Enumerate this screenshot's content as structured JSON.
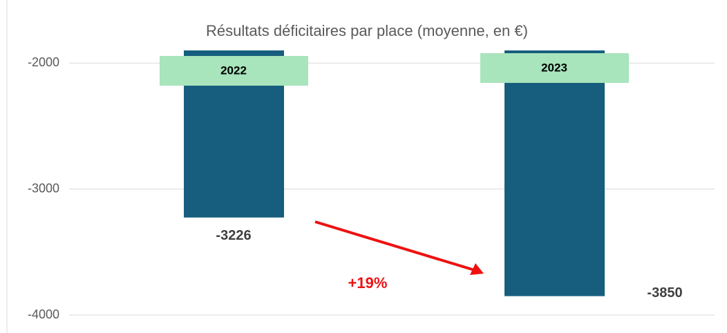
{
  "chart_data": {
    "type": "bar",
    "title": "Résultats déficitaires par place (moyenne, en €)",
    "categories": [
      "2022",
      "2023"
    ],
    "values": [
      -3226,
      -3850
    ],
    "color": "#175e7e",
    "label_color": "#a8e4bc",
    "ylim": [
      -4000,
      -1900
    ],
    "yticks": [
      -4000,
      -3000,
      -2000
    ],
    "grid": true,
    "annotation": "+19%"
  }
}
